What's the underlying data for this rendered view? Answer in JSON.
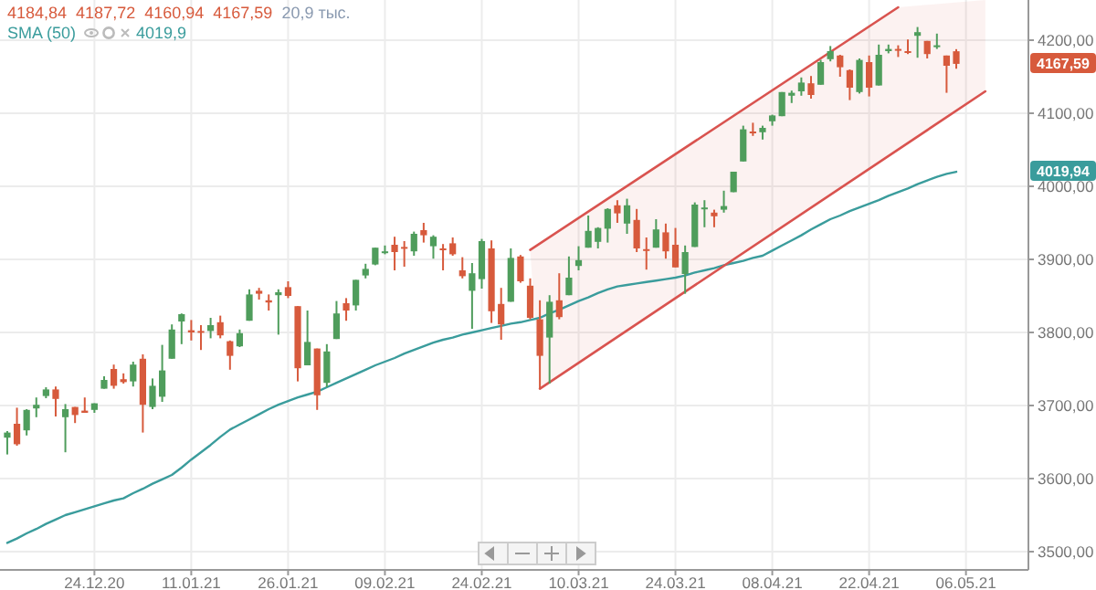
{
  "chart_data": {
    "type": "candlestick",
    "categories": [
      null,
      null,
      null,
      null,
      null,
      null,
      null,
      null,
      null,
      "24.12.20",
      null,
      null,
      null,
      null,
      null,
      null,
      null,
      null,
      null,
      "11.01.21",
      null,
      null,
      null,
      null,
      null,
      null,
      null,
      null,
      null,
      "26.01.21",
      null,
      null,
      null,
      null,
      null,
      null,
      null,
      null,
      null,
      "09.02.21",
      null,
      null,
      null,
      null,
      null,
      null,
      null,
      null,
      null,
      "24.02.21",
      null,
      null,
      null,
      null,
      null,
      null,
      null,
      null,
      null,
      "10.03.21",
      null,
      null,
      null,
      null,
      null,
      null,
      null,
      null,
      null,
      "24.03.21",
      null,
      null,
      null,
      null,
      null,
      null,
      null,
      null,
      null,
      "08.04.21",
      null,
      null,
      null,
      null,
      null,
      null,
      null,
      null,
      null,
      "22.04.21",
      null,
      null,
      null,
      null,
      null,
      null,
      null,
      null,
      null,
      "06.05.21",
      null,
      null
    ],
    "ohlc": [
      [
        3656,
        3665,
        3633,
        3663
      ],
      [
        3675,
        3697,
        3645,
        3647
      ],
      [
        3666,
        3695,
        3659,
        3694
      ],
      [
        3696,
        3711,
        3684,
        3701
      ],
      [
        3713,
        3725,
        3710,
        3722
      ],
      [
        3722,
        3726,
        3685,
        3709
      ],
      [
        3684,
        3702,
        3636,
        3695
      ],
      [
        3698,
        3698,
        3676,
        3687
      ],
      [
        3693,
        3711,
        3690,
        3690
      ],
      [
        3694,
        3703,
        3690,
        3703
      ],
      [
        3723,
        3740,
        3723,
        3735
      ],
      [
        3750,
        3756,
        3723,
        3727
      ],
      [
        3736,
        3744,
        3730,
        3732
      ],
      [
        3733,
        3760,
        3726,
        3756
      ],
      [
        3764,
        3770,
        3663,
        3701
      ],
      [
        3698,
        3737,
        3695,
        3727
      ],
      [
        3712,
        3783,
        3705,
        3748
      ],
      [
        3764,
        3811,
        3764,
        3804
      ],
      [
        3815,
        3826,
        3784,
        3825
      ],
      [
        3803,
        3817,
        3789,
        3800
      ],
      [
        3802,
        3810,
        3776,
        3801
      ],
      [
        3802,
        3820,
        3792,
        3810
      ],
      [
        3814,
        3823,
        3792,
        3796
      ],
      [
        3788,
        3789,
        3749,
        3768
      ],
      [
        3781,
        3804,
        3780,
        3799
      ],
      [
        3816,
        3859,
        3816,
        3852
      ],
      [
        3857,
        3861,
        3845,
        3853
      ],
      [
        3844,
        3852,
        3830,
        3841
      ],
      [
        3851,
        3859,
        3797,
        3855
      ],
      [
        3862,
        3870,
        3847,
        3850
      ],
      [
        3836,
        3836,
        3733,
        3751
      ],
      [
        3755,
        3830,
        3755,
        3787
      ],
      [
        3778,
        3778,
        3694,
        3714
      ],
      [
        3731,
        3784,
        3725,
        3774
      ],
      [
        3791,
        3843,
        3791,
        3826
      ],
      [
        3840,
        3847,
        3816,
        3830
      ],
      [
        3837,
        3872,
        3830,
        3872
      ],
      [
        3878,
        3894,
        3874,
        3887
      ],
      [
        3893,
        3916,
        3892,
        3916
      ],
      [
        3910,
        3919,
        3907,
        3911
      ],
      [
        3920,
        3931,
        3885,
        3910
      ],
      [
        3917,
        3925,
        3890,
        3916
      ],
      [
        3911,
        3938,
        3905,
        3935
      ],
      [
        3940,
        3950,
        3923,
        3933
      ],
      [
        3918,
        3933,
        3901,
        3931
      ],
      [
        3915,
        3921,
        3885,
        3914
      ],
      [
        3922,
        3930,
        3905,
        3907
      ],
      [
        3885,
        3903,
        3874,
        3877
      ],
      [
        3857,
        3895,
        3805,
        3881
      ],
      [
        3873,
        3928,
        3860,
        3925
      ],
      [
        3915,
        3926,
        3813,
        3829
      ],
      [
        3839,
        3861,
        3790,
        3811
      ],
      [
        3842,
        3915,
        3842,
        3902
      ],
      [
        3904,
        3906,
        3868,
        3870
      ],
      [
        3864,
        3874,
        3818,
        3820
      ],
      [
        3818,
        3844,
        3723,
        3768
      ],
      [
        3793,
        3851,
        3730,
        3842
      ],
      [
        3844,
        3881,
        3818,
        3821
      ],
      [
        3851,
        3904,
        3851,
        3875
      ],
      [
        3891,
        3918,
        3885,
        3899
      ],
      [
        3916,
        3960,
        3916,
        3939
      ],
      [
        3924,
        3944,
        3915,
        3943
      ],
      [
        3942,
        3970,
        3923,
        3969
      ],
      [
        3974,
        3981,
        3950,
        3963
      ],
      [
        3949,
        3983,
        3935,
        3974
      ],
      [
        3954,
        3969,
        3910,
        3915
      ],
      [
        3914,
        3930,
        3886,
        3913
      ],
      [
        3916,
        3955,
        3916,
        3941
      ],
      [
        3937,
        3949,
        3901,
        3911
      ],
      [
        3920,
        3943,
        3889,
        3889
      ],
      [
        3880,
        3919,
        3853,
        3910
      ],
      [
        3917,
        3978,
        3917,
        3975
      ],
      [
        3970,
        3981,
        3944,
        3971
      ],
      [
        3964,
        3968,
        3944,
        3959
      ],
      [
        3968,
        3994,
        3964,
        3973
      ],
      [
        3992,
        4020,
        3992,
        4020
      ],
      [
        4034,
        4083,
        4034,
        4078
      ],
      [
        4075,
        4087,
        4069,
        4074
      ],
      [
        4074,
        4083,
        4064,
        4080
      ],
      [
        4089,
        4098,
        4083,
        4097
      ],
      [
        4096,
        4129,
        4096,
        4129
      ],
      [
        4124,
        4131,
        4114,
        4128
      ],
      [
        4130,
        4149,
        4124,
        4142
      ],
      [
        4141,
        4151,
        4120,
        4125
      ],
      [
        4139,
        4173,
        4139,
        4170
      ],
      [
        4174,
        4192,
        4171,
        4185
      ],
      [
        4179,
        4180,
        4150,
        4163
      ],
      [
        4159,
        4160,
        4118,
        4135
      ],
      [
        4129,
        4175,
        4127,
        4173
      ],
      [
        4170,
        4179,
        4123,
        4135
      ],
      [
        4138,
        4194,
        4138,
        4180
      ],
      [
        4185,
        4194,
        4182,
        4188
      ],
      [
        4188,
        4193,
        4177,
        4187
      ],
      [
        4185,
        4201,
        4181,
        4183
      ],
      [
        4206,
        4218,
        4176,
        4211
      ],
      [
        4199,
        4199,
        4175,
        4181
      ],
      [
        4191,
        4209,
        4188,
        4193
      ],
      [
        4179,
        4179,
        4128,
        4165
      ],
      [
        4184.84,
        4187.72,
        4160.94,
        4167.59
      ],
      null,
      null,
      null
    ],
    "colors": [
      "#4f9d5c",
      "#d75a3c",
      "#4f9d5c",
      "#4f9d5c",
      "#4f9d5c",
      "#d75a3c",
      "#4f9d5c",
      "#d75a3c",
      "#d75a3c",
      "#4f9d5c",
      "#4f9d5c",
      "#d75a3c",
      "#d75a3c",
      "#4f9d5c",
      "#d75a3c",
      "#4f9d5c",
      "#4f9d5c",
      "#4f9d5c",
      "#4f9d5c",
      "#d75a3c",
      "#d75a3c",
      "#4f9d5c",
      "#d75a3c",
      "#d75a3c",
      "#4f9d5c",
      "#4f9d5c",
      "#d75a3c",
      "#d75a3c",
      "#4f9d5c",
      "#d75a3c",
      "#d75a3c",
      "#4f9d5c",
      "#d75a3c",
      "#4f9d5c",
      "#4f9d5c",
      "#d75a3c",
      "#4f9d5c",
      "#4f9d5c",
      "#4f9d5c",
      "#4f9d5c",
      "#d75a3c",
      "#d75a3c",
      "#4f9d5c",
      "#d75a3c",
      "#4f9d5c",
      "#d75a3c",
      "#d75a3c",
      "#d75a3c",
      "#4f9d5c",
      "#4f9d5c",
      "#d75a3c",
      "#d75a3c",
      "#4f9d5c",
      "#d75a3c",
      "#d75a3c",
      "#d75a3c",
      "#4f9d5c",
      "#d75a3c",
      "#4f9d5c",
      "#4f9d5c",
      "#4f9d5c",
      "#4f9d5c",
      "#4f9d5c",
      "#d75a3c",
      "#4f9d5c",
      "#d75a3c",
      "#d75a3c",
      "#4f9d5c",
      "#d75a3c",
      "#d75a3c",
      "#4f9d5c",
      "#4f9d5c",
      "#4f9d5c",
      "#d75a3c",
      "#4f9d5c",
      "#4f9d5c",
      "#4f9d5c",
      "#d75a3c",
      "#4f9d5c",
      "#4f9d5c",
      "#4f9d5c",
      "#4f9d5c",
      "#4f9d5c",
      "#d75a3c",
      "#4f9d5c",
      "#4f9d5c",
      "#d75a3c",
      "#d75a3c",
      "#4f9d5c",
      "#d75a3c",
      "#4f9d5c",
      "#4f9d5c",
      "#d75a3c",
      "#d75a3c",
      "#4f9d5c",
      "#d75a3c",
      "#4f9d5c",
      "#d75a3c",
      "#d75a3c",
      null,
      null,
      null
    ],
    "series": [
      {
        "type": "line",
        "name": "SMA (50)",
        "color": "#3a9c9c",
        "values": [
          3512,
          3518,
          3525,
          3531,
          3538,
          3544,
          3550,
          3554,
          3558,
          3562,
          3566,
          3570,
          3573,
          3580,
          3586,
          3593,
          3599,
          3605,
          3615,
          3626,
          3636,
          3646,
          3657,
          3667,
          3674,
          3681,
          3688,
          3695,
          3701,
          3706,
          3711,
          3715,
          3719,
          3725,
          3731,
          3737,
          3743,
          3749,
          3755,
          3760,
          3765,
          3771,
          3776,
          3781,
          3786,
          3790,
          3793,
          3797,
          3800,
          3803,
          3806,
          3809,
          3812,
          3814,
          3817,
          3820,
          3826,
          3831,
          3837,
          3843,
          3848,
          3854,
          3859,
          3863,
          3865,
          3867,
          3869,
          3871,
          3873,
          3875,
          3878,
          3882,
          3885,
          3888,
          3892,
          3895,
          3898,
          3902,
          3905,
          3912,
          3919,
          3926,
          3933,
          3941,
          3948,
          3955,
          3960,
          3966,
          3971,
          3976,
          3981,
          3987,
          3992,
          3997,
          4003,
          4008,
          4013,
          4017,
          4019.94,
          null,
          null,
          null
        ]
      },
      {
        "type": "line",
        "color": "#d9534f",
        "values": [
          null,
          null,
          null,
          null,
          null,
          null,
          null,
          null,
          null,
          null,
          null,
          null,
          null,
          null,
          null,
          null,
          null,
          null,
          null,
          null,
          null,
          null,
          null,
          null,
          null,
          null,
          null,
          null,
          null,
          null,
          null,
          null,
          null,
          null,
          null,
          null,
          null,
          null,
          null,
          null,
          null,
          null,
          null,
          null,
          null,
          null,
          null,
          null,
          null,
          null,
          null,
          null,
          null,
          null,
          3913,
          null,
          null,
          null,
          null,
          null,
          null,
          null,
          null,
          null,
          null,
          null,
          null,
          null,
          null,
          null,
          null,
          null,
          null,
          null,
          null,
          null,
          null,
          null,
          null,
          null,
          null,
          null,
          null,
          null,
          null,
          null,
          null,
          null,
          null,
          null,
          null,
          null,
          4245,
          null,
          null,
          null,
          null,
          null,
          null,
          null,
          null,
          null
        ]
      },
      {
        "type": "line",
        "color": "#d9534f",
        "values": [
          null,
          null,
          null,
          null,
          null,
          null,
          null,
          null,
          null,
          null,
          null,
          null,
          null,
          null,
          null,
          null,
          null,
          null,
          null,
          null,
          null,
          null,
          null,
          null,
          null,
          null,
          null,
          null,
          null,
          null,
          null,
          null,
          null,
          null,
          null,
          null,
          null,
          null,
          null,
          null,
          null,
          null,
          null,
          null,
          null,
          null,
          null,
          null,
          null,
          null,
          null,
          null,
          null,
          null,
          null,
          3723,
          null,
          null,
          null,
          null,
          null,
          null,
          null,
          null,
          null,
          null,
          null,
          null,
          null,
          null,
          null,
          null,
          null,
          null,
          null,
          null,
          null,
          null,
          null,
          null,
          null,
          null,
          null,
          null,
          null,
          null,
          null,
          null,
          null,
          null,
          null,
          null,
          null,
          null,
          null,
          null,
          null,
          null,
          null,
          null,
          null,
          4130
        ]
      }
    ],
    "ylim": [
      3475,
      4255
    ],
    "yticks": [
      {
        "value": 3500,
        "label": "3500,00"
      },
      {
        "value": 3600,
        "label": "3600,00"
      },
      {
        "value": 3700,
        "label": "3700,00"
      },
      {
        "value": 3800,
        "label": "3800,00"
      },
      {
        "value": 3900,
        "label": "3900,00"
      },
      {
        "value": 4000,
        "label": "4000,00"
      },
      {
        "value": 4100,
        "label": "4100,00"
      },
      {
        "value": 4200,
        "label": "4200,00"
      }
    ],
    "grid": true,
    "legend": "top left",
    "annotations": [
      "4184,84",
      "4187,72",
      "4160,94",
      "4167,59",
      "20,9 тыс.",
      "4019,9",
      "4167,59",
      "4019,94"
    ]
  }
}
